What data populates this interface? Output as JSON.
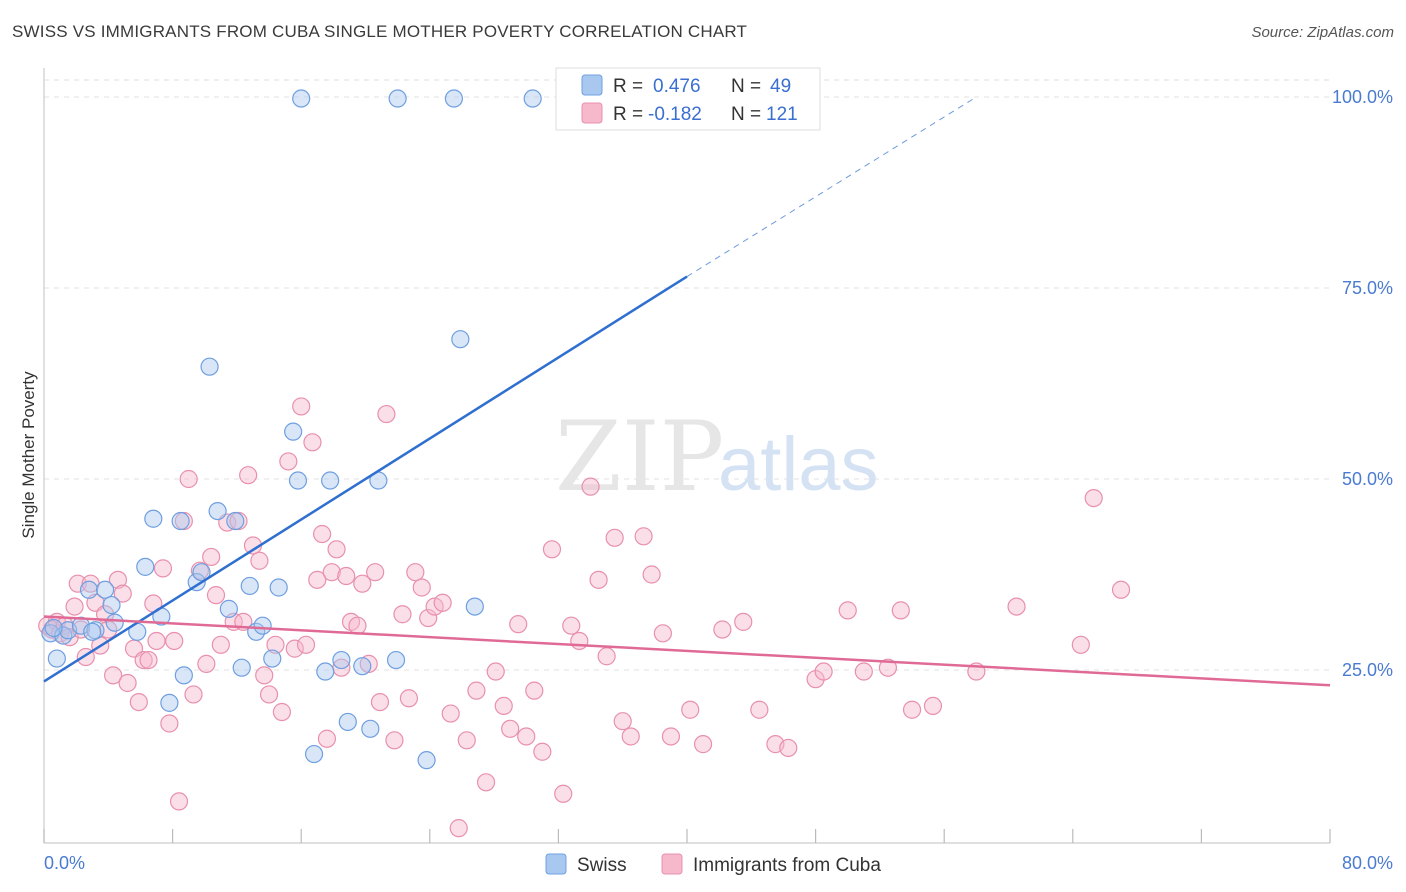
{
  "title": "SWISS VS IMMIGRANTS FROM CUBA SINGLE MOTHER POVERTY CORRELATION CHART",
  "source": "Source: ZipAtlas.com",
  "watermark": {
    "zip": "ZIP",
    "atlas": "atlas"
  },
  "chart_data": {
    "type": "scatter",
    "title": "SWISS VS IMMIGRANTS FROM CUBA SINGLE MOTHER POVERTY CORRELATION CHART",
    "xlabel": "",
    "ylabel": "Single Mother Poverty",
    "xlim": [
      0,
      80
    ],
    "ylim": [
      0,
      105
    ],
    "x_tick_labels": [
      "0.0%",
      "80.0%"
    ],
    "y_ticks": [
      25,
      50,
      75,
      100
    ],
    "y_tick_labels": [
      "25.0%",
      "50.0%",
      "75.0%",
      "100.0%"
    ],
    "grid": true,
    "legend_position": "top-center",
    "colors": {
      "swiss": "#a8c8f0",
      "swiss_edge": "#6f9fe0",
      "swiss_line": "#2f6fd0",
      "cuba": "#f6b8cb",
      "cuba_edge": "#e890ad",
      "cuba_line": "#e06a96"
    },
    "series": [
      {
        "name": "Swiss",
        "R": "0.476",
        "N": "49",
        "trend": {
          "x": [
            0,
            40
          ],
          "y": [
            23.5,
            76.5
          ],
          "extended_to": [
            58,
            100
          ]
        },
        "points": [
          [
            0.4,
            29.8
          ],
          [
            0.8,
            26.5
          ],
          [
            1.2,
            29.5
          ],
          [
            1.5,
            30.2
          ],
          [
            2.3,
            30.8
          ],
          [
            2.8,
            35.5
          ],
          [
            3.2,
            30.2
          ],
          [
            3.8,
            35.5
          ],
          [
            4.2,
            33.5
          ],
          [
            4.4,
            31.2
          ],
          [
            5.8,
            30.0
          ],
          [
            6.3,
            38.5
          ],
          [
            6.8,
            44.8
          ],
          [
            7.3,
            32.0
          ],
          [
            7.8,
            20.7
          ],
          [
            8.5,
            44.5
          ],
          [
            8.7,
            24.3
          ],
          [
            9.5,
            36.5
          ],
          [
            9.8,
            37.8
          ],
          [
            10.3,
            64.7
          ],
          [
            10.8,
            45.8
          ],
          [
            11.5,
            33.0
          ],
          [
            11.9,
            44.5
          ],
          [
            12.3,
            25.3
          ],
          [
            12.8,
            36.0
          ],
          [
            13.2,
            30.0
          ],
          [
            13.6,
            30.8
          ],
          [
            14.2,
            26.5
          ],
          [
            14.6,
            35.8
          ],
          [
            15.5,
            56.2
          ],
          [
            15.8,
            49.8
          ],
          [
            16.0,
            99.8
          ],
          [
            16.8,
            14.0
          ],
          [
            17.5,
            24.8
          ],
          [
            17.8,
            49.8
          ],
          [
            18.5,
            26.3
          ],
          [
            18.9,
            18.2
          ],
          [
            19.8,
            25.5
          ],
          [
            20.3,
            17.3
          ],
          [
            20.8,
            49.8
          ],
          [
            22.0,
            99.8
          ],
          [
            21.9,
            26.3
          ],
          [
            23.8,
            13.2
          ],
          [
            25.5,
            99.8
          ],
          [
            25.9,
            68.3
          ],
          [
            26.8,
            33.3
          ],
          [
            30.4,
            99.8
          ],
          [
            0.6,
            30.5
          ],
          [
            3.0,
            30.0
          ]
        ]
      },
      {
        "name": "Immigrants from Cuba",
        "R": "-0.182",
        "N": "121",
        "trend": {
          "x": [
            0,
            80
          ],
          "y": [
            32.0,
            23.0
          ]
        },
        "points": [
          [
            0.2,
            30.8
          ],
          [
            0.5,
            30.3
          ],
          [
            0.8,
            31.3
          ],
          [
            1.0,
            29.8
          ],
          [
            1.3,
            30.8
          ],
          [
            1.6,
            29.3
          ],
          [
            1.9,
            33.3
          ],
          [
            2.1,
            36.3
          ],
          [
            2.3,
            30.3
          ],
          [
            2.6,
            26.7
          ],
          [
            2.9,
            36.3
          ],
          [
            3.2,
            33.8
          ],
          [
            3.5,
            28.2
          ],
          [
            3.8,
            32.3
          ],
          [
            4.0,
            30.3
          ],
          [
            4.3,
            24.3
          ],
          [
            4.6,
            36.8
          ],
          [
            4.9,
            35.0
          ],
          [
            5.2,
            23.3
          ],
          [
            5.6,
            27.8
          ],
          [
            5.9,
            20.8
          ],
          [
            6.2,
            26.3
          ],
          [
            6.5,
            26.3
          ],
          [
            6.8,
            33.7
          ],
          [
            7.0,
            28.8
          ],
          [
            7.4,
            38.3
          ],
          [
            7.8,
            18.0
          ],
          [
            8.1,
            28.8
          ],
          [
            8.4,
            7.8
          ],
          [
            8.7,
            44.5
          ],
          [
            9.0,
            50.0
          ],
          [
            9.3,
            21.8
          ],
          [
            9.7,
            38.0
          ],
          [
            10.1,
            25.8
          ],
          [
            10.4,
            39.8
          ],
          [
            10.7,
            34.8
          ],
          [
            11.0,
            28.3
          ],
          [
            11.4,
            44.3
          ],
          [
            11.8,
            31.3
          ],
          [
            12.1,
            44.5
          ],
          [
            12.4,
            31.3
          ],
          [
            12.7,
            50.5
          ],
          [
            13.0,
            41.3
          ],
          [
            13.4,
            39.3
          ],
          [
            13.7,
            24.3
          ],
          [
            14.0,
            21.8
          ],
          [
            14.4,
            28.3
          ],
          [
            14.8,
            19.5
          ],
          [
            15.2,
            52.3
          ],
          [
            15.6,
            27.8
          ],
          [
            16.0,
            59.5
          ],
          [
            16.3,
            28.3
          ],
          [
            16.7,
            54.8
          ],
          [
            17.0,
            36.8
          ],
          [
            17.3,
            42.8
          ],
          [
            17.6,
            16.0
          ],
          [
            17.9,
            37.8
          ],
          [
            18.2,
            40.8
          ],
          [
            18.5,
            25.3
          ],
          [
            18.8,
            37.3
          ],
          [
            19.1,
            31.3
          ],
          [
            19.5,
            30.8
          ],
          [
            19.8,
            36.3
          ],
          [
            20.2,
            25.8
          ],
          [
            20.6,
            37.8
          ],
          [
            20.9,
            20.8
          ],
          [
            21.3,
            58.5
          ],
          [
            21.8,
            15.8
          ],
          [
            22.3,
            32.3
          ],
          [
            22.7,
            21.3
          ],
          [
            23.1,
            37.8
          ],
          [
            23.5,
            35.8
          ],
          [
            23.9,
            31.8
          ],
          [
            24.3,
            33.3
          ],
          [
            24.8,
            33.8
          ],
          [
            25.3,
            19.3
          ],
          [
            25.8,
            4.3
          ],
          [
            26.3,
            15.8
          ],
          [
            26.9,
            22.3
          ],
          [
            27.5,
            10.3
          ],
          [
            28.1,
            24.8
          ],
          [
            28.6,
            20.3
          ],
          [
            29.0,
            17.3
          ],
          [
            29.5,
            31.0
          ],
          [
            30.0,
            16.3
          ],
          [
            30.5,
            22.3
          ],
          [
            31.0,
            14.3
          ],
          [
            31.6,
            40.8
          ],
          [
            32.3,
            8.8
          ],
          [
            32.8,
            30.8
          ],
          [
            33.3,
            28.8
          ],
          [
            34.0,
            49.0
          ],
          [
            34.5,
            36.8
          ],
          [
            35.0,
            26.8
          ],
          [
            35.5,
            42.3
          ],
          [
            36.0,
            18.3
          ],
          [
            36.5,
            16.3
          ],
          [
            37.3,
            42.5
          ],
          [
            37.8,
            37.5
          ],
          [
            38.5,
            29.8
          ],
          [
            39.0,
            16.3
          ],
          [
            40.2,
            19.8
          ],
          [
            41.0,
            15.3
          ],
          [
            42.2,
            30.3
          ],
          [
            43.5,
            31.3
          ],
          [
            44.5,
            19.8
          ],
          [
            45.5,
            15.3
          ],
          [
            46.3,
            14.8
          ],
          [
            48.0,
            23.8
          ],
          [
            48.5,
            24.8
          ],
          [
            50.0,
            32.8
          ],
          [
            51.0,
            24.8
          ],
          [
            52.5,
            25.3
          ],
          [
            53.3,
            32.8
          ],
          [
            54.0,
            19.8
          ],
          [
            55.3,
            20.3
          ],
          [
            58.0,
            24.8
          ],
          [
            60.5,
            33.3
          ],
          [
            64.5,
            28.3
          ],
          [
            65.3,
            47.5
          ],
          [
            67.0,
            35.5
          ]
        ]
      }
    ]
  },
  "legend": {
    "rows": [
      {
        "r_label": "R =",
        "r_value": "0.476",
        "n_label": "N =",
        "n_value": "49"
      },
      {
        "r_label": "R =",
        "r_value": "-0.182",
        "n_label": "N =",
        "n_value": "121"
      }
    ]
  },
  "bottom_legend": {
    "swiss": "Swiss",
    "cuba": "Immigrants from Cuba"
  }
}
